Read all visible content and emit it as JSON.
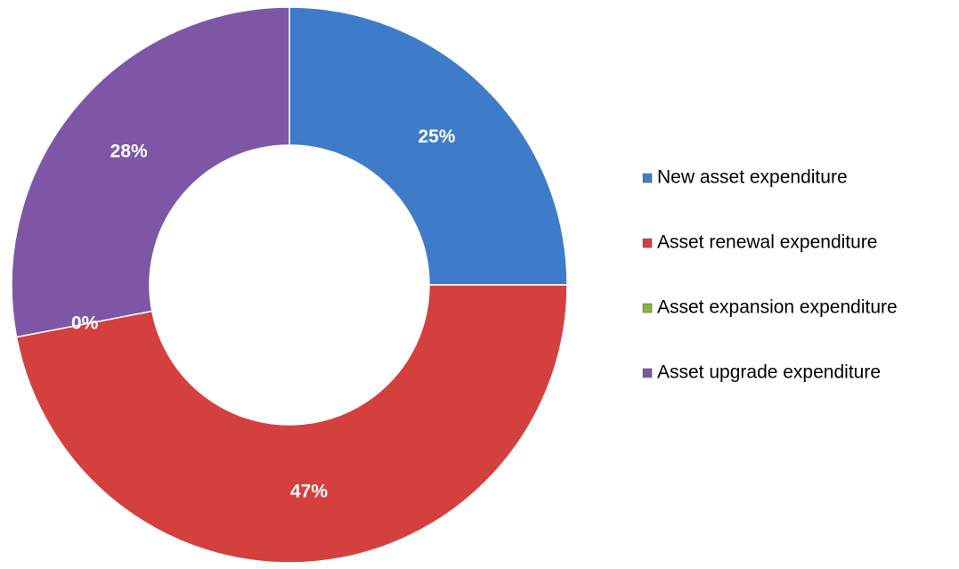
{
  "chart_data": {
    "type": "donut",
    "categories": [
      "New asset expenditure",
      "Asset renewal expenditure",
      "Asset expansion expenditure",
      "Asset upgrade expenditure"
    ],
    "values": [
      25,
      47,
      0,
      28
    ],
    "value_labels": [
      "25%",
      "47%",
      "0%",
      "28%"
    ],
    "colors": [
      "#3e7cc9",
      "#d4403d",
      "#8db33c",
      "#7d57a6"
    ],
    "legend": "right"
  }
}
